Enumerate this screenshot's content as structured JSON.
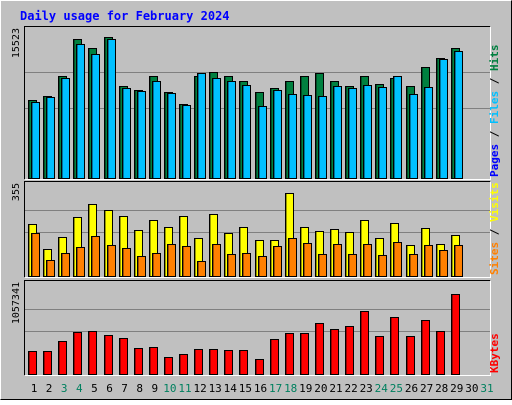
{
  "chart_data": {
    "type": "bar",
    "title": "Daily usage for February 2024",
    "x": [
      "1",
      "2",
      "3",
      "4",
      "5",
      "6",
      "7",
      "8",
      "9",
      "10",
      "11",
      "12",
      "13",
      "14",
      "15",
      "16",
      "17",
      "18",
      "19",
      "20",
      "21",
      "22",
      "23",
      "24",
      "25",
      "26",
      "27",
      "28",
      "29",
      "30",
      "31"
    ],
    "weekend_days": [
      "3",
      "4",
      "10",
      "11",
      "17",
      "18",
      "24",
      "25",
      "31"
    ],
    "panels": [
      {
        "name": "hits-files-pages",
        "max_label": "15523",
        "ylim": [
          0,
          15523
        ],
        "right_label": [
          "Pages",
          " / ",
          "Files",
          " / ",
          "Hits"
        ],
        "series": [
          {
            "name": "Hits",
            "color": "#008040",
            "values": [
              8450,
              8900,
              11000,
              15000,
              14000,
              15200,
              10000,
              9500,
              11000,
              9300,
              8000,
              11000,
              11500,
              11000,
              10500,
              9300,
              9700,
              10500,
              11000,
              11300,
              10500,
              10000,
              11000,
              10200,
              10800,
              10000,
              12000,
              13000,
              14000
            ]
          },
          {
            "name": "Files",
            "color": "#00C0FF",
            "values": [
              8200,
              8750,
              10800,
              14500,
              13400,
              15000,
              9700,
              9400,
              10500,
              9200,
              7900,
              11400,
              10800,
              10500,
              10100,
              7800,
              9500,
              9100,
              9000,
              8900,
              10000,
              9700,
              10100,
              9800,
              11000,
              9100,
              9800,
              12800,
              13700
            ]
          },
          {
            "name": "Pages",
            "color": "#0000FF",
            "values": [
              0,
              0,
              0,
              0,
              0,
              0,
              0,
              0,
              0,
              0,
              0,
              0,
              0,
              0,
              0,
              0,
              0,
              0,
              0,
              0,
              0,
              0,
              0,
              0,
              0,
              0,
              0,
              0,
              0
            ]
          }
        ]
      },
      {
        "name": "visits-sites",
        "max_label": "355",
        "ylim": [
          0,
          355
        ],
        "right_label": [
          "Sites",
          " / ",
          "Visits"
        ],
        "series": [
          {
            "name": "Visits",
            "color": "#FFFF00",
            "values": [
              213,
              112,
              163,
              244,
              296,
              270,
              247,
              190,
              229,
              200,
              245,
              157,
              253,
              179,
              200,
              150,
              148,
              338,
              200,
              186,
              192,
              183,
              229,
              157,
              218,
              130,
              198,
              133,
              170
            ]
          },
          {
            "name": "Sites",
            "color": "#FF8000",
            "values": [
              179,
              70,
              95,
              120,
              166,
              130,
              118,
              85,
              97,
              134,
              124,
              66,
              135,
              92,
              95,
              85,
              127,
              158,
              139,
              92,
              134,
              93,
              132,
              90,
              143,
              93,
              128,
              110,
              128
            ]
          }
        ]
      },
      {
        "name": "kbytes",
        "max_label": "1057341",
        "ylim": [
          0,
          1057341
        ],
        "right_label": [
          "KBytes"
        ],
        "series": [
          {
            "name": "KBytes",
            "color": "#FF0000",
            "values": [
              295000,
              295000,
              410000,
              520000,
              530000,
              490000,
              450000,
              325000,
              340000,
              215000,
              260000,
              320000,
              320000,
              300000,
              300000,
              190000,
              435000,
              510000,
              510000,
              630000,
              560000,
              600000,
              780000,
              470000,
              700000,
              480000,
              670000,
              535000,
              990000
            ]
          }
        ]
      }
    ]
  }
}
